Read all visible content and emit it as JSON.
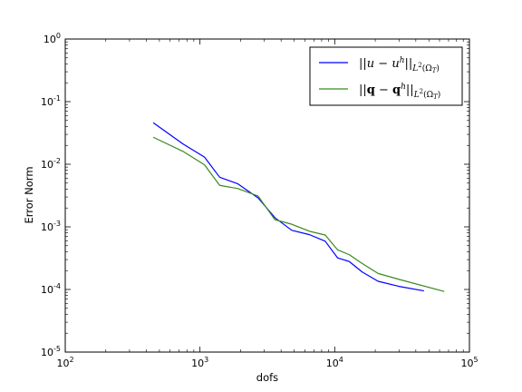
{
  "chart_data": {
    "type": "line",
    "xlabel": "dofs",
    "ylabel": "Error Norm",
    "xscale": "log",
    "yscale": "log",
    "xlim": [
      100,
      100000
    ],
    "ylim": [
      1e-05,
      1
    ],
    "x_ticks": [
      {
        "value": 100,
        "base": "10",
        "exp": "2"
      },
      {
        "value": 1000,
        "base": "10",
        "exp": "3"
      },
      {
        "value": 10000,
        "base": "10",
        "exp": "4"
      },
      {
        "value": 100000,
        "base": "10",
        "exp": "5"
      }
    ],
    "y_ticks": [
      {
        "value": 1,
        "base": "10",
        "exp": "0"
      },
      {
        "value": 0.1,
        "base": "10",
        "exp": "-1"
      },
      {
        "value": 0.01,
        "base": "10",
        "exp": "-2"
      },
      {
        "value": 0.001,
        "base": "10",
        "exp": "-3"
      },
      {
        "value": 0.0001,
        "base": "10",
        "exp": "-4"
      },
      {
        "value": 1e-05,
        "base": "10",
        "exp": "-5"
      }
    ],
    "grid": false,
    "legend_position": "top-right",
    "series": [
      {
        "name": "||u − u^h||_{L²(Ω_T)}",
        "color": "#0000ff",
        "x": [
          450,
          750,
          1080,
          1400,
          1900,
          2700,
          3600,
          4800,
          6500,
          8500,
          10500,
          12800,
          16000,
          21000,
          30000,
          46000
        ],
        "y": [
          0.046,
          0.021,
          0.013,
          0.0062,
          0.0049,
          0.0029,
          0.0014,
          0.00088,
          0.00075,
          0.00059,
          0.00032,
          0.00028,
          0.00019,
          0.000135,
          0.000112,
          9.5e-05
        ]
      },
      {
        "name": "||q − q^h||_{L²(Ω_T)}",
        "color": "#3a8a1e",
        "x": [
          450,
          750,
          1080,
          1400,
          1900,
          2700,
          3600,
          4800,
          6500,
          8500,
          10500,
          12800,
          16000,
          21000,
          30000,
          65000
        ],
        "y": [
          0.027,
          0.016,
          0.0098,
          0.0046,
          0.0041,
          0.0031,
          0.0013,
          0.0011,
          0.00085,
          0.00074,
          0.00043,
          0.00036,
          0.00026,
          0.00018,
          0.000145,
          9.3e-05
        ]
      }
    ]
  }
}
